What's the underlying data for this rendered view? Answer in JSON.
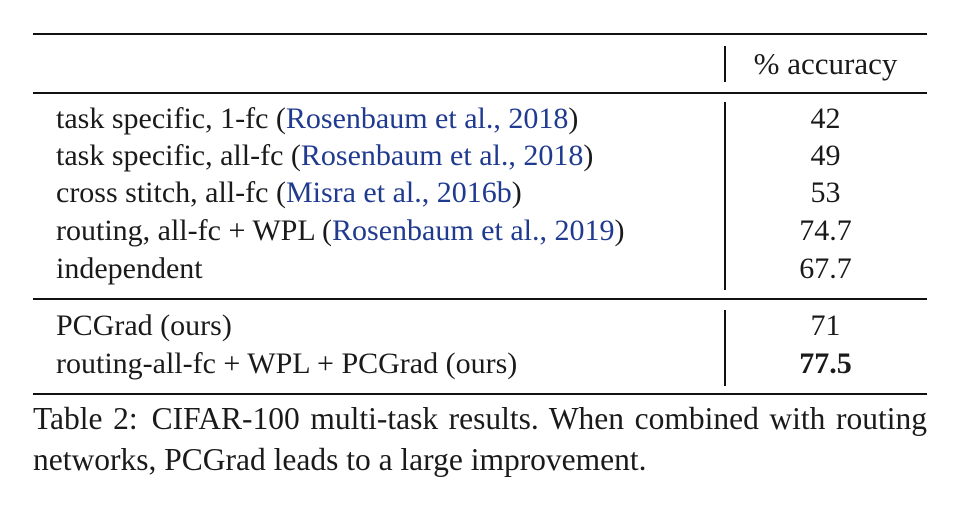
{
  "table": {
    "header": {
      "method": "",
      "metric": "% accuracy"
    },
    "group1": [
      {
        "method": "task specific, 1-fc",
        "citation": "Rosenbaum et al., 2018",
        "value": "42",
        "bold": false
      },
      {
        "method": "task specific, all-fc",
        "citation": "Rosenbaum et al., 2018",
        "value": "49",
        "bold": false
      },
      {
        "method": "cross stitch, all-fc",
        "citation": "Misra et al., 2016b",
        "value": "53",
        "bold": false
      },
      {
        "method": "routing, all-fc + WPL",
        "citation": "Rosenbaum et al., 2019",
        "value": "74.7",
        "bold": false
      },
      {
        "method": "independent",
        "citation": "",
        "value": "67.7",
        "bold": false
      }
    ],
    "group2": [
      {
        "method": "PCGrad (ours)",
        "citation": "",
        "value": "71",
        "bold": false
      },
      {
        "method": "routing-all-fc + WPL + PCGrad (ours)",
        "citation": "",
        "value": "77.5",
        "bold": true
      }
    ]
  },
  "caption": {
    "label": "Table 2:",
    "text": "CIFAR-100 multi-task results. When combined with routing networks, PCGrad leads to a large improvement."
  },
  "colors": {
    "citation_link": "#1f3a8f",
    "text": "#1a1a1a",
    "rules": "#111111"
  }
}
